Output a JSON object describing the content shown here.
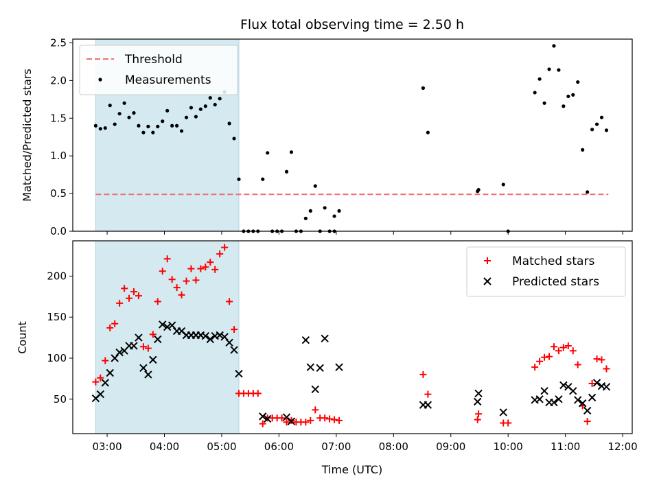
{
  "chart_data": [
    {
      "type": "scatter",
      "title": "Flux total observing time = 2.50 h",
      "ylabel": "Matched/Predicted stars",
      "xlabel": "",
      "xlim": [
        "02:24",
        "12:10"
      ],
      "ylim": [
        0,
        2.55
      ],
      "x_ticks": [
        "03:00",
        "04:00",
        "05:00",
        "06:00",
        "07:00",
        "08:00",
        "09:00",
        "10:00",
        "11:00",
        "12:00"
      ],
      "y_ticks": [
        "0.0",
        "0.5",
        "1.0",
        "1.5",
        "2.0",
        "2.5"
      ],
      "legend_position": "upper-left",
      "shaded_span": {
        "start": "02:48",
        "end": "05:18",
        "color": "#d4eaf0"
      },
      "threshold": {
        "name": "Threshold",
        "value": 0.49,
        "start": "02:48",
        "end": "11:45",
        "color": "#f07070",
        "style": "dashed"
      },
      "series": [
        {
          "name": "Measurements",
          "marker": "dot",
          "color": "#000000",
          "points": [
            [
              "02:48",
              1.4
            ],
            [
              "02:53",
              1.36
            ],
            [
              "02:58",
              1.37
            ],
            [
              "03:03",
              1.67
            ],
            [
              "03:08",
              1.42
            ],
            [
              "03:13",
              1.56
            ],
            [
              "03:18",
              1.7
            ],
            [
              "03:23",
              1.51
            ],
            [
              "03:28",
              1.57
            ],
            [
              "03:33",
              1.4
            ],
            [
              "03:38",
              1.31
            ],
            [
              "03:43",
              1.39
            ],
            [
              "03:48",
              1.31
            ],
            [
              "03:53",
              1.39
            ],
            [
              "03:58",
              1.46
            ],
            [
              "04:03",
              1.6
            ],
            [
              "04:08",
              1.4
            ],
            [
              "04:13",
              1.4
            ],
            [
              "04:18",
              1.33
            ],
            [
              "04:23",
              1.51
            ],
            [
              "04:28",
              1.64
            ],
            [
              "04:33",
              1.52
            ],
            [
              "04:38",
              1.62
            ],
            [
              "04:43",
              1.66
            ],
            [
              "04:48",
              1.77
            ],
            [
              "04:53",
              1.68
            ],
            [
              "04:58",
              1.76
            ],
            [
              "05:03",
              1.85
            ],
            [
              "05:08",
              1.43
            ],
            [
              "05:13",
              1.23
            ],
            [
              "05:18",
              0.69
            ],
            [
              "05:23",
              0.0
            ],
            [
              "05:28",
              0.0
            ],
            [
              "05:33",
              0.0
            ],
            [
              "05:38",
              0.0
            ],
            [
              "05:43",
              0.69
            ],
            [
              "05:48",
              1.04
            ],
            [
              "05:53",
              0.0
            ],
            [
              "05:58",
              0.0
            ],
            [
              "06:03",
              0.0
            ],
            [
              "06:08",
              0.79
            ],
            [
              "06:13",
              1.05
            ],
            [
              "06:18",
              0.0
            ],
            [
              "06:23",
              0.0
            ],
            [
              "06:28",
              0.17
            ],
            [
              "06:33",
              0.27
            ],
            [
              "06:38",
              0.6
            ],
            [
              "06:43",
              0.0
            ],
            [
              "06:48",
              0.31
            ],
            [
              "06:53",
              0.0
            ],
            [
              "06:58",
              0.2
            ],
            [
              "06:58",
              0.0
            ],
            [
              "07:03",
              0.27
            ],
            [
              "08:31",
              1.9
            ],
            [
              "08:36",
              1.31
            ],
            [
              "09:28",
              0.53
            ],
            [
              "09:29",
              0.55
            ],
            [
              "09:55",
              0.62
            ],
            [
              "10:00",
              0.0
            ],
            [
              "10:28",
              1.84
            ],
            [
              "10:33",
              2.02
            ],
            [
              "10:38",
              1.7
            ],
            [
              "10:43",
              2.15
            ],
            [
              "10:48",
              2.46
            ],
            [
              "10:53",
              2.14
            ],
            [
              "10:58",
              1.66
            ],
            [
              "11:03",
              1.79
            ],
            [
              "11:08",
              1.81
            ],
            [
              "11:13",
              1.98
            ],
            [
              "11:18",
              1.08
            ],
            [
              "11:23",
              0.52
            ],
            [
              "11:28",
              1.35
            ],
            [
              "11:33",
              1.42
            ],
            [
              "11:38",
              1.51
            ],
            [
              "11:43",
              1.34
            ]
          ]
        }
      ]
    },
    {
      "type": "scatter",
      "title": "",
      "ylabel": "Count",
      "xlabel": "Time (UTC)",
      "xlim": [
        "02:24",
        "12:10"
      ],
      "ylim": [
        8,
        243
      ],
      "x_ticks": [
        "03:00",
        "04:00",
        "05:00",
        "06:00",
        "07:00",
        "08:00",
        "09:00",
        "10:00",
        "11:00",
        "12:00"
      ],
      "y_ticks": [
        "50",
        "100",
        "150",
        "200"
      ],
      "legend_position": "upper-right",
      "shaded_span": {
        "start": "02:48",
        "end": "05:18",
        "color": "#d4eaf0"
      },
      "series": [
        {
          "name": "Matched stars",
          "marker": "plus",
          "color": "#ff0000",
          "points": [
            [
              "02:48",
              71
            ],
            [
              "02:53",
              76
            ],
            [
              "02:58",
              97
            ],
            [
              "03:03",
              137
            ],
            [
              "03:08",
              142
            ],
            [
              "03:13",
              167
            ],
            [
              "03:18",
              185
            ],
            [
              "03:23",
              173
            ],
            [
              "03:28",
              181
            ],
            [
              "03:33",
              176
            ],
            [
              "03:38",
              114
            ],
            [
              "03:43",
              112
            ],
            [
              "03:48",
              129
            ],
            [
              "03:53",
              169
            ],
            [
              "03:58",
              206
            ],
            [
              "04:03",
              221
            ],
            [
              "04:08",
              196
            ],
            [
              "04:13",
              186
            ],
            [
              "04:18",
              177
            ],
            [
              "04:23",
              194
            ],
            [
              "04:28",
              209
            ],
            [
              "04:33",
              195
            ],
            [
              "04:38",
              209
            ],
            [
              "04:43",
              211
            ],
            [
              "04:48",
              217
            ],
            [
              "04:53",
              208
            ],
            [
              "04:58",
              227
            ],
            [
              "05:03",
              235
            ],
            [
              "05:08",
              169
            ],
            [
              "05:13",
              135
            ],
            [
              "05:18",
              57
            ],
            [
              "05:23",
              57
            ],
            [
              "05:28",
              57
            ],
            [
              "05:33",
              57
            ],
            [
              "05:38",
              57
            ],
            [
              "05:43",
              20
            ],
            [
              "05:48",
              27
            ],
            [
              "05:53",
              27
            ],
            [
              "05:58",
              27
            ],
            [
              "06:03",
              27
            ],
            [
              "06:08",
              22
            ],
            [
              "06:13",
              24
            ],
            [
              "06:18",
              22
            ],
            [
              "06:23",
              22
            ],
            [
              "06:28",
              22
            ],
            [
              "06:33",
              24
            ],
            [
              "06:38",
              37
            ],
            [
              "06:43",
              27
            ],
            [
              "06:48",
              27
            ],
            [
              "06:53",
              26
            ],
            [
              "06:58",
              25
            ],
            [
              "07:03",
              24
            ],
            [
              "08:31",
              80
            ],
            [
              "08:36",
              56
            ],
            [
              "09:28",
              25
            ],
            [
              "09:29",
              32
            ],
            [
              "09:55",
              21
            ],
            [
              "10:00",
              21
            ],
            [
              "10:28",
              89
            ],
            [
              "10:33",
              96
            ],
            [
              "10:38",
              101
            ],
            [
              "10:43",
              102
            ],
            [
              "10:48",
              114
            ],
            [
              "10:53",
              109
            ],
            [
              "10:58",
              113
            ],
            [
              "11:03",
              115
            ],
            [
              "11:08",
              109
            ],
            [
              "11:13",
              92
            ],
            [
              "11:18",
              42
            ],
            [
              "11:23",
              23
            ],
            [
              "11:28",
              69
            ],
            [
              "11:33",
              99
            ],
            [
              "11:38",
              98
            ],
            [
              "11:43",
              87
            ]
          ]
        },
        {
          "name": "Predicted stars",
          "marker": "x",
          "color": "#000000",
          "points": [
            [
              "02:48",
              51
            ],
            [
              "02:53",
              56
            ],
            [
              "02:58",
              70
            ],
            [
              "03:03",
              82
            ],
            [
              "03:08",
              100
            ],
            [
              "03:13",
              107
            ],
            [
              "03:18",
              109
            ],
            [
              "03:23",
              115
            ],
            [
              "03:28",
              115
            ],
            [
              "03:33",
              125
            ],
            [
              "03:38",
              88
            ],
            [
              "03:43",
              80
            ],
            [
              "03:48",
              98
            ],
            [
              "03:53",
              123
            ],
            [
              "03:58",
              141
            ],
            [
              "04:03",
              138
            ],
            [
              "04:08",
              140
            ],
            [
              "04:13",
              133
            ],
            [
              "04:18",
              133
            ],
            [
              "04:23",
              128
            ],
            [
              "04:28",
              128
            ],
            [
              "04:33",
              128
            ],
            [
              "04:38",
              128
            ],
            [
              "04:43",
              127
            ],
            [
              "04:48",
              123
            ],
            [
              "04:53",
              127
            ],
            [
              "04:58",
              128
            ],
            [
              "05:03",
              126
            ],
            [
              "05:08",
              119
            ],
            [
              "05:13",
              110
            ],
            [
              "05:18",
              81
            ],
            [
              "05:43",
              29
            ],
            [
              "05:48",
              26
            ],
            [
              "06:08",
              28
            ],
            [
              "06:13",
              23
            ],
            [
              "06:28",
              122
            ],
            [
              "06:33",
              89
            ],
            [
              "06:38",
              62
            ],
            [
              "06:43",
              88
            ],
            [
              "06:48",
              124
            ],
            [
              "07:03",
              89
            ],
            [
              "08:31",
              43
            ],
            [
              "08:36",
              43
            ],
            [
              "09:28",
              47
            ],
            [
              "09:29",
              57
            ],
            [
              "09:55",
              34
            ],
            [
              "10:28",
              49
            ],
            [
              "10:33",
              50
            ],
            [
              "10:38",
              60
            ],
            [
              "10:43",
              46
            ],
            [
              "10:48",
              46
            ],
            [
              "10:53",
              50
            ],
            [
              "10:58",
              67
            ],
            [
              "11:03",
              65
            ],
            [
              "11:08",
              60
            ],
            [
              "11:13",
              49
            ],
            [
              "11:18",
              45
            ],
            [
              "11:23",
              36
            ],
            [
              "11:28",
              52
            ],
            [
              "11:33",
              70
            ],
            [
              "11:38",
              66
            ],
            [
              "11:43",
              65
            ]
          ]
        }
      ]
    }
  ]
}
